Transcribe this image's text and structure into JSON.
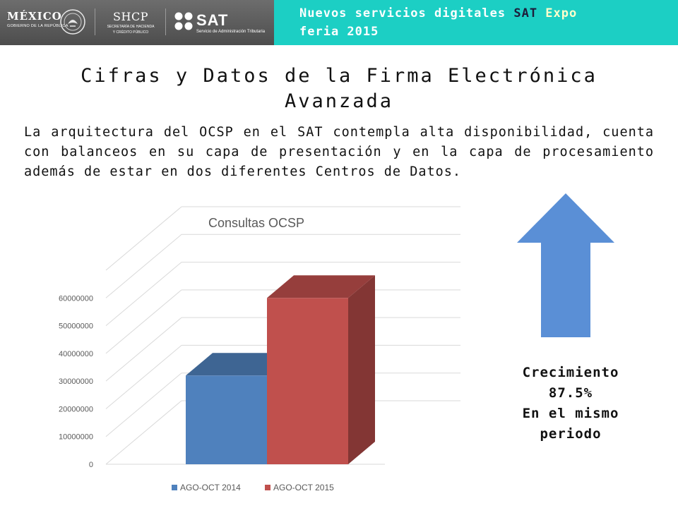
{
  "header": {
    "logo_mexico_big": "MÉXICO",
    "logo_mexico_small": "GOBIERNO DE LA REPÚBLICA",
    "logo_shcp_big": "SHCP",
    "logo_shcp_small_1": "SECRETARÍA DE HACIENDA",
    "logo_shcp_small_2": "Y CRÉDITO PÚBLICO",
    "logo_sat_big": "SAT",
    "logo_sat_small": "Servicio de Administración Tributaria",
    "banner_prefix": "Nuevos servicios digitales ",
    "banner_sat": "SAT",
    "banner_expo": " Expo",
    "banner_suffix": "feria 2015"
  },
  "slide": {
    "title": "Cifras y Datos de la Firma Electrónica Avanzada",
    "body": "La arquitectura del OCSP en el SAT contempla alta disponibilidad, cuenta con balanceos en su capa de presentación y en la capa de procesamiento además de estar en dos diferentes Centros de Datos.",
    "caption_line1": "Crecimiento",
    "caption_line2": "87.5%",
    "caption_line3": "En el mismo",
    "caption_line4": "periodo"
  },
  "colors": {
    "banner_accent": "#1ccfc4",
    "arrow": "#5a8fd6",
    "series_2014": "#4f81bd",
    "series_2015": "#c0504d"
  },
  "chart_data": {
    "type": "bar",
    "title": "Consultas OCSP",
    "categories": [
      ""
    ],
    "series": [
      {
        "name": "AGO-OCT 2014",
        "values": [
          32000000
        ]
      },
      {
        "name": "AGO-OCT 2015",
        "values": [
          60000000
        ]
      }
    ],
    "yticks": [
      "0",
      "10000000",
      "20000000",
      "30000000",
      "40000000",
      "50000000",
      "60000000"
    ],
    "ylim": [
      0,
      70000000
    ],
    "grid": true,
    "legend": "bottom",
    "style": "3d-clustered-column"
  }
}
